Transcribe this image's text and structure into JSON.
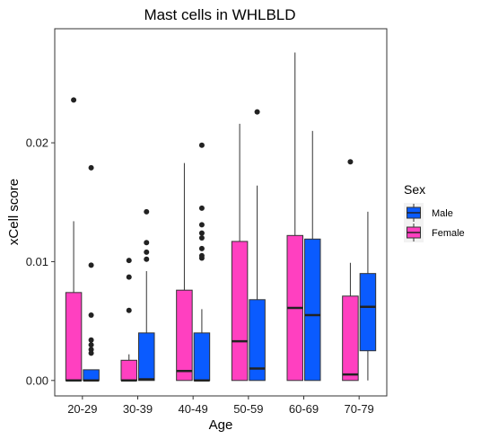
{
  "chart_data": {
    "type": "boxplot",
    "title": "Mast cells in WHLBLD",
    "xlabel": "Age",
    "ylabel": "xCell score",
    "ylim": [
      -0.0013,
      0.0296
    ],
    "yticks": [
      0.0,
      0.01,
      0.02
    ],
    "ytick_labels": [
      "0.00",
      "0.01",
      "0.02"
    ],
    "categories": [
      "20-29",
      "30-39",
      "40-49",
      "50-59",
      "60-69",
      "70-79"
    ],
    "grid": false,
    "legend": {
      "title": "Sex",
      "position": "right",
      "entries": [
        "Male",
        "Female"
      ]
    },
    "series": [
      {
        "name": "Female",
        "color": "#ff40c0",
        "boxes": [
          {
            "min": 0.0,
            "q1": 0.0,
            "median": 0.0,
            "q3": 0.0074,
            "max": 0.0134,
            "outliers": [
              0.0236
            ]
          },
          {
            "min": 0.0,
            "q1": 0.0,
            "median": 0.0,
            "q3": 0.0017,
            "max": 0.0022,
            "outliers": [
              0.0059,
              0.0087,
              0.0101
            ]
          },
          {
            "min": 0.0,
            "q1": 0.0,
            "median": 0.0008,
            "q3": 0.0076,
            "max": 0.0183,
            "outliers": []
          },
          {
            "min": 0.0,
            "q1": 0.0,
            "median": 0.0033,
            "q3": 0.0117,
            "max": 0.0216,
            "outliers": []
          },
          {
            "min": 0.0,
            "q1": 0.0,
            "median": 0.0061,
            "q3": 0.0122,
            "max": 0.0276,
            "outliers": []
          },
          {
            "min": 0.0,
            "q1": 0.0,
            "median": 0.0005,
            "q3": 0.0071,
            "max": 0.0099,
            "outliers": [
              0.0184
            ]
          }
        ]
      },
      {
        "name": "Male",
        "color": "#0a5bff",
        "boxes": [
          {
            "min": 0.0,
            "q1": 0.0,
            "median": 0.0,
            "q3": 0.0009,
            "max": 0.0009,
            "outliers": [
              0.0179,
              0.0097,
              0.0055,
              0.0034,
              0.003,
              0.0026,
              0.0023
            ]
          },
          {
            "min": 0.0,
            "q1": 0.0,
            "median": 0.0001,
            "q3": 0.004,
            "max": 0.0092,
            "outliers": [
              0.0142,
              0.0116,
              0.0108,
              0.0102
            ]
          },
          {
            "min": 0.0,
            "q1": 0.0,
            "median": 0.0,
            "q3": 0.004,
            "max": 0.006,
            "outliers": [
              0.0198,
              0.0145,
              0.0131,
              0.0124,
              0.012,
              0.0111,
              0.0105,
              0.0103
            ]
          },
          {
            "min": 0.0,
            "q1": 0.0,
            "median": 0.001,
            "q3": 0.0068,
            "max": 0.0164,
            "outliers": [
              0.0226
            ]
          },
          {
            "min": 0.0,
            "q1": 0.0,
            "median": 0.0055,
            "q3": 0.0119,
            "max": 0.021,
            "outliers": []
          },
          {
            "min": 0.0,
            "q1": 0.0025,
            "median": 0.0062,
            "q3": 0.009,
            "max": 0.0142,
            "outliers": []
          }
        ]
      }
    ]
  }
}
